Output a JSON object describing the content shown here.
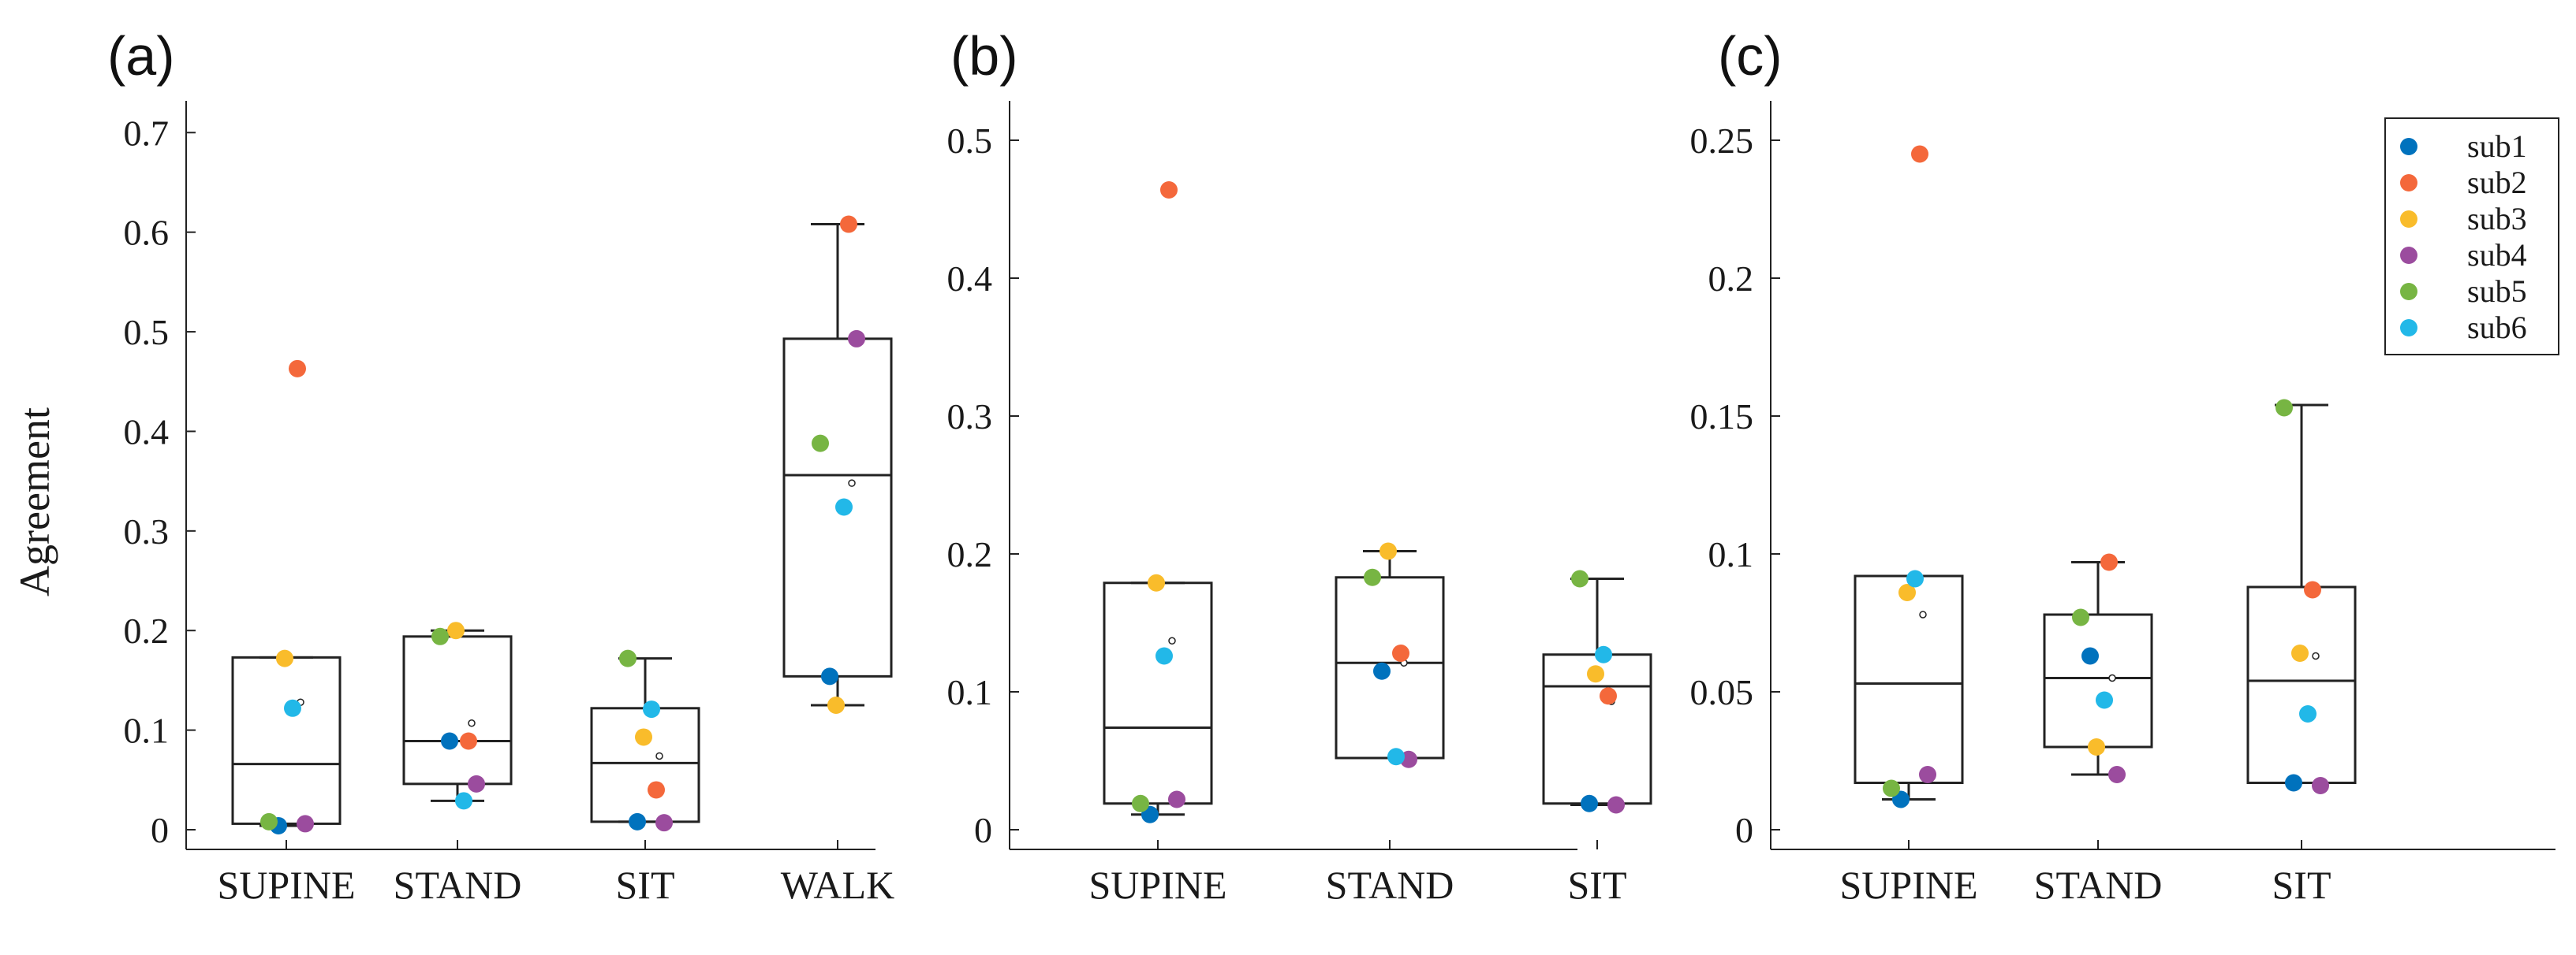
{
  "ylabel": "Agreement",
  "legend": [
    {
      "name": "sub1",
      "color": "#0072BD"
    },
    {
      "name": "sub2",
      "color": "#F4683B"
    },
    {
      "name": "sub3",
      "color": "#F9BC2B"
    },
    {
      "name": "sub4",
      "color": "#9B4C9E"
    },
    {
      "name": "sub5",
      "color": "#77B543"
    },
    {
      "name": "sub6",
      "color": "#22B8E8"
    }
  ],
  "chart_data": [
    {
      "type": "box",
      "panel_label": "(a)",
      "ylabel": "Agreement",
      "ylim": [
        0,
        0.72
      ],
      "yticks": [
        0,
        0.1,
        0.2,
        0.3,
        0.4,
        0.5,
        0.6,
        0.7
      ],
      "ytick_labels": [
        "0",
        "0.1",
        "0.2",
        "0.3",
        "0.4",
        "0.5",
        "0.6",
        "0.7"
      ],
      "categories": [
        "SUPINE",
        "STAND",
        "SIT",
        "WALK"
      ],
      "boxes": [
        {
          "q1": 0.006,
          "median": 0.066,
          "q3": 0.173,
          "whisker_low": 0.004,
          "whisker_high": 0.173,
          "mean": 0.128
        },
        {
          "q1": 0.046,
          "median": 0.089,
          "q3": 0.194,
          "whisker_low": 0.029,
          "whisker_high": 0.2,
          "mean": 0.107
        },
        {
          "q1": 0.008,
          "median": 0.067,
          "q3": 0.122,
          "whisker_low": 0.008,
          "whisker_high": 0.172,
          "mean": 0.074
        },
        {
          "q1": 0.154,
          "median": 0.356,
          "q3": 0.493,
          "whisker_low": 0.125,
          "whisker_high": 0.608,
          "mean": 0.348
        }
      ],
      "series": [
        {
          "name": "sub1",
          "values": [
            0.004,
            0.089,
            0.008,
            0.154
          ]
        },
        {
          "name": "sub2",
          "values": [
            0.463,
            0.089,
            0.04,
            0.608
          ]
        },
        {
          "name": "sub3",
          "values": [
            0.172,
            0.2,
            0.093,
            0.125
          ]
        },
        {
          "name": "sub4",
          "values": [
            0.006,
            0.046,
            0.007,
            0.493
          ]
        },
        {
          "name": "sub5",
          "values": [
            0.008,
            0.194,
            0.172,
            0.388
          ]
        },
        {
          "name": "sub6",
          "values": [
            0.122,
            0.029,
            0.121,
            0.324
          ]
        }
      ]
    },
    {
      "type": "box",
      "panel_label": "(b)",
      "ylim": [
        0,
        0.52
      ],
      "yticks": [
        0,
        0.1,
        0.2,
        0.3,
        0.4,
        0.5
      ],
      "ytick_labels": [
        "0",
        "0.1",
        "0.2",
        "0.3",
        "0.4",
        "0.5"
      ],
      "categories": [
        "SUPINE",
        "STAND",
        "SIT"
      ],
      "boxes": [
        {
          "q1": 0.019,
          "median": 0.074,
          "q3": 0.179,
          "whisker_low": 0.011,
          "whisker_high": 0.179,
          "mean": 0.137
        },
        {
          "q1": 0.052,
          "median": 0.121,
          "q3": 0.183,
          "whisker_low": 0.052,
          "whisker_high": 0.202,
          "mean": 0.121
        },
        {
          "q1": 0.019,
          "median": 0.104,
          "q3": 0.127,
          "whisker_low": 0.018,
          "whisker_high": 0.182,
          "mean": 0.093
        }
      ],
      "series": [
        {
          "name": "sub1",
          "values": [
            0.011,
            0.115,
            0.019
          ]
        },
        {
          "name": "sub2",
          "values": [
            0.464,
            0.128,
            0.097
          ]
        },
        {
          "name": "sub3",
          "values": [
            0.179,
            0.202,
            0.113
          ]
        },
        {
          "name": "sub4",
          "values": [
            0.022,
            0.051,
            0.018
          ]
        },
        {
          "name": "sub5",
          "values": [
            0.019,
            0.183,
            0.182
          ]
        },
        {
          "name": "sub6",
          "values": [
            0.126,
            0.053,
            0.127
          ]
        }
      ]
    },
    {
      "type": "box",
      "panel_label": "(c)",
      "ylim": [
        0,
        0.26
      ],
      "yticks": [
        0,
        0.05,
        0.1,
        0.15,
        0.2,
        0.25
      ],
      "ytick_labels": [
        "0",
        "0.05",
        "0.1",
        "0.15",
        "0.2",
        "0.25"
      ],
      "categories": [
        "SUPINE",
        "STAND",
        "SIT"
      ],
      "boxes": [
        {
          "q1": 0.017,
          "median": 0.053,
          "q3": 0.092,
          "whisker_low": 0.011,
          "whisker_high": 0.092,
          "mean": 0.078
        },
        {
          "q1": 0.03,
          "median": 0.055,
          "q3": 0.078,
          "whisker_low": 0.02,
          "whisker_high": 0.097,
          "mean": 0.055
        },
        {
          "q1": 0.017,
          "median": 0.054,
          "q3": 0.088,
          "whisker_low": 0.017,
          "whisker_high": 0.154,
          "mean": 0.063
        }
      ],
      "series": [
        {
          "name": "sub1",
          "values": [
            0.011,
            0.063,
            0.017
          ]
        },
        {
          "name": "sub2",
          "values": [
            0.245,
            0.097,
            0.087
          ]
        },
        {
          "name": "sub3",
          "values": [
            0.086,
            0.03,
            0.064
          ]
        },
        {
          "name": "sub4",
          "values": [
            0.02,
            0.02,
            0.016
          ]
        },
        {
          "name": "sub5",
          "values": [
            0.015,
            0.077,
            0.153
          ]
        },
        {
          "name": "sub6",
          "values": [
            0.091,
            0.047,
            0.042
          ]
        }
      ]
    }
  ]
}
